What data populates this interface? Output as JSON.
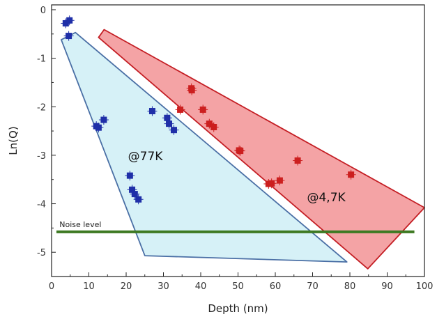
{
  "chart_data": {
    "type": "scatter",
    "xlabel": "Depth (nm)",
    "ylabel": "Ln(Q)",
    "xlim": [
      0,
      100
    ],
    "ylim": [
      -5.5,
      0.1
    ],
    "xticks": [
      "0",
      "10",
      "20",
      "30",
      "40",
      "50",
      "60",
      "70",
      "80",
      "90",
      "100"
    ],
    "yticks": [
      "0",
      "-1",
      "-2",
      "-3",
      "-4",
      "-5"
    ],
    "grid": false,
    "series": [
      {
        "color": "#1f2fa8",
        "points": [
          [
            3.8,
            -0.28
          ],
          [
            4.8,
            -0.22
          ],
          [
            4.6,
            -0.54
          ],
          [
            12.0,
            -2.4
          ],
          [
            12.6,
            -2.43
          ],
          [
            14.0,
            -2.27
          ],
          [
            21.0,
            -3.42
          ],
          [
            21.6,
            -3.71
          ],
          [
            22.3,
            -3.8
          ],
          [
            23.3,
            -3.91
          ],
          [
            27.0,
            -2.09
          ],
          [
            31.0,
            -2.23
          ],
          [
            31.5,
            -2.35
          ],
          [
            32.8,
            -2.48
          ]
        ]
      },
      {
        "color": "#cc1f1f",
        "points": [
          [
            34.5,
            -2.06
          ],
          [
            37.5,
            -1.62
          ],
          [
            37.6,
            -1.66
          ],
          [
            40.6,
            -2.06
          ],
          [
            42.3,
            -2.35
          ],
          [
            43.5,
            -2.42
          ],
          [
            50.3,
            -2.9
          ],
          [
            50.6,
            -2.91
          ],
          [
            58.2,
            -3.59
          ],
          [
            59.0,
            -3.58
          ],
          [
            61.2,
            -3.52
          ],
          [
            66.0,
            -3.11
          ],
          [
            80.3,
            -3.4
          ]
        ]
      }
    ],
    "regions": [
      {
        "label": "@77K",
        "fill": "#d6f1f7",
        "stroke": "#4a6fa5",
        "vertices": [
          [
            2.6,
            -0.62
          ],
          [
            6.4,
            -0.47
          ],
          [
            79.2,
            -5.2
          ],
          [
            25.0,
            -5.07
          ]
        ]
      },
      {
        "label": "@4,7K",
        "fill": "#f4a3a5",
        "stroke": "#c41e24",
        "vertices": [
          [
            12.6,
            -0.57
          ],
          [
            14.1,
            -0.41
          ],
          [
            100,
            -4.08
          ],
          [
            84.8,
            -5.34
          ]
        ]
      }
    ],
    "noise_line": {
      "label": "Noise level",
      "y": -4.58,
      "x": [
        1.3,
        97.3
      ],
      "color": "#3e7a23"
    }
  }
}
